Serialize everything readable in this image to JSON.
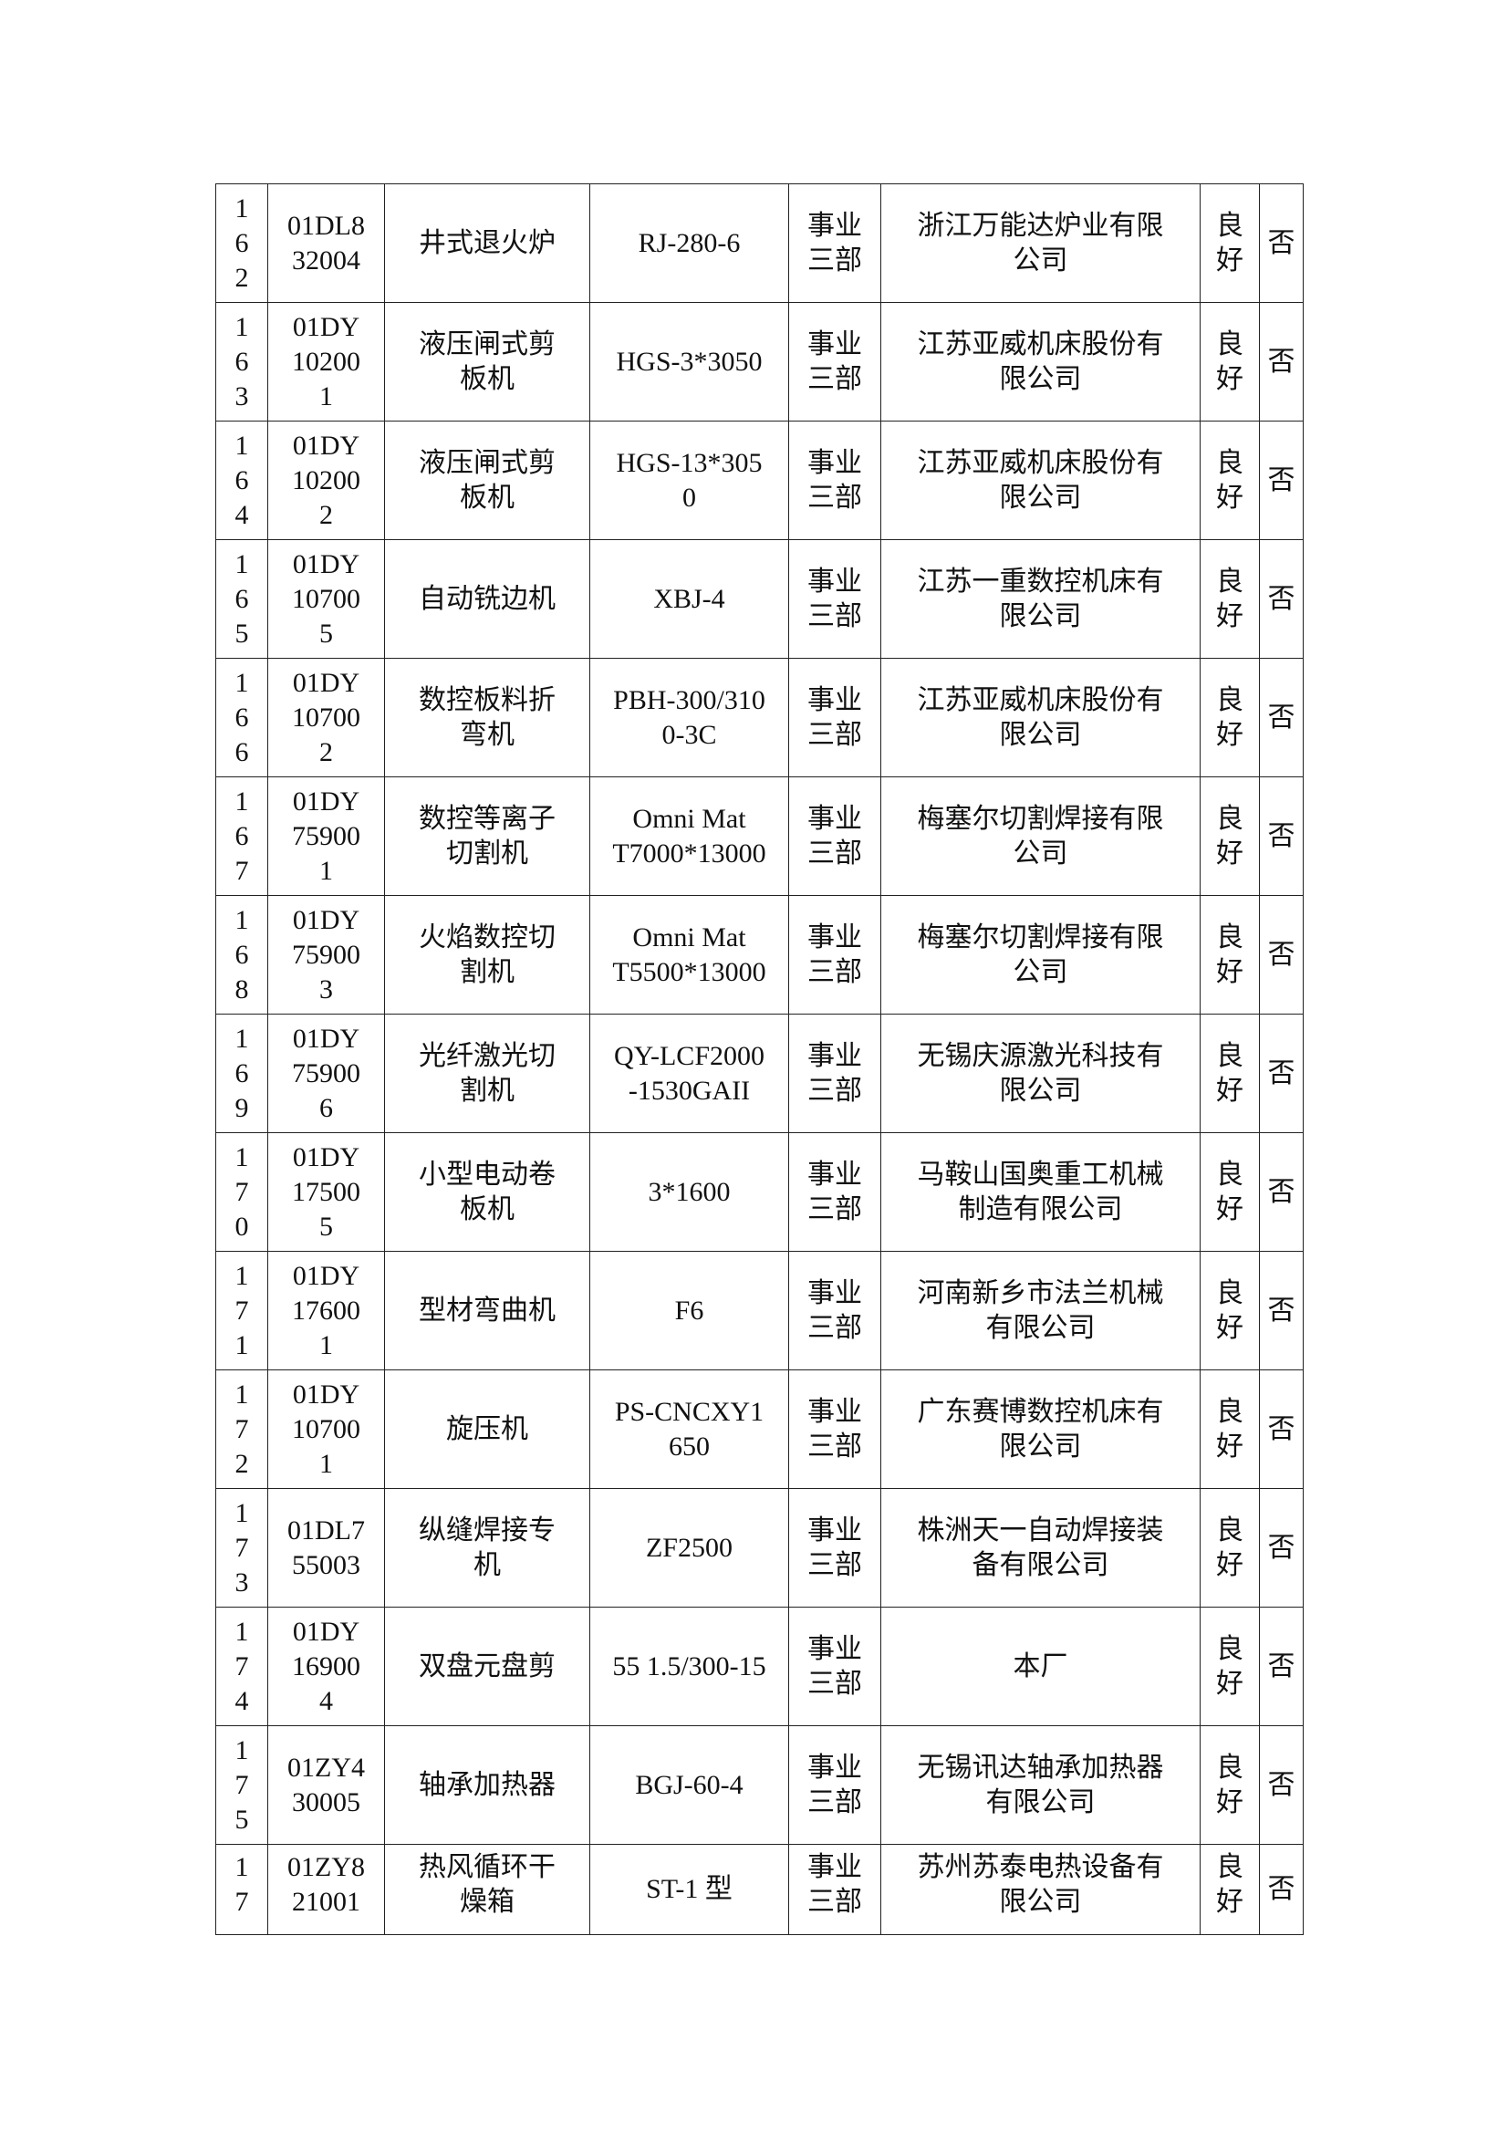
{
  "table": {
    "rows": [
      {
        "no": "1\n6\n2",
        "code": "01DL8\n32004",
        "name": "井式退火炉",
        "model": "RJ-280-6",
        "dept": "事业\n三部",
        "maker": "浙江万能达炉业有限\n公司",
        "status": "良\n好",
        "flag": "否"
      },
      {
        "no": "1\n6\n3",
        "code": "01DY\n10200\n1",
        "name": "液压闸式剪\n板机",
        "model": "HGS-3*3050",
        "dept": "事业\n三部",
        "maker": "江苏亚威机床股份有\n限公司",
        "status": "良\n好",
        "flag": "否"
      },
      {
        "no": "1\n6\n4",
        "code": "01DY\n10200\n2",
        "name": "液压闸式剪\n板机",
        "model": "HGS-13*305\n0",
        "dept": "事业\n三部",
        "maker": "江苏亚威机床股份有\n限公司",
        "status": "良\n好",
        "flag": "否"
      },
      {
        "no": "1\n6\n5",
        "code": "01DY\n10700\n5",
        "name": "自动铣边机",
        "model": "XBJ-4",
        "dept": "事业\n三部",
        "maker": "江苏一重数控机床有\n限公司",
        "status": "良\n好",
        "flag": "否"
      },
      {
        "no": "1\n6\n6",
        "code": "01DY\n10700\n2",
        "name": "数控板料折\n弯机",
        "model": "PBH-300/310\n0-3C",
        "dept": "事业\n三部",
        "maker": "江苏亚威机床股份有\n限公司",
        "status": "良\n好",
        "flag": "否"
      },
      {
        "no": "1\n6\n7",
        "code": "01DY\n75900\n1",
        "name": "数控等离子\n切割机",
        "model": "Omni Mat\nT7000*13000",
        "dept": "事业\n三部",
        "maker": "梅塞尔切割焊接有限\n公司",
        "status": "良\n好",
        "flag": "否"
      },
      {
        "no": "1\n6\n8",
        "code": "01DY\n75900\n3",
        "name": "火焰数控切\n割机",
        "model": "Omni Mat\nT5500*13000",
        "dept": "事业\n三部",
        "maker": "梅塞尔切割焊接有限\n公司",
        "status": "良\n好",
        "flag": "否"
      },
      {
        "no": "1\n6\n9",
        "code": "01DY\n75900\n6",
        "name": "光纤激光切\n割机",
        "model": "QY-LCF2000\n-1530GAII",
        "dept": "事业\n三部",
        "maker": "无锡庆源激光科技有\n限公司",
        "status": "良\n好",
        "flag": "否"
      },
      {
        "no": "1\n7\n0",
        "code": "01DY\n17500\n5",
        "name": "小型电动卷\n板机",
        "model": "3*1600",
        "dept": "事业\n三部",
        "maker": "马鞍山国奥重工机械\n制造有限公司",
        "status": "良\n好",
        "flag": "否"
      },
      {
        "no": "1\n7\n1",
        "code": "01DY\n17600\n1",
        "name": "型材弯曲机",
        "model": "F6",
        "dept": "事业\n三部",
        "maker": "河南新乡市法兰机械\n有限公司",
        "status": "良\n好",
        "flag": "否"
      },
      {
        "no": "1\n7\n2",
        "code": "01DY\n10700\n1",
        "name": "旋压机",
        "model": "PS-CNCXY1\n650",
        "dept": "事业\n三部",
        "maker": "广东赛博数控机床有\n限公司",
        "status": "良\n好",
        "flag": "否"
      },
      {
        "no": "1\n7\n3",
        "code": "01DL7\n55003",
        "name": "纵缝焊接专\n机",
        "model": "ZF2500",
        "dept": "事业\n三部",
        "maker": "株洲天一自动焊接装\n备有限公司",
        "status": "良\n好",
        "flag": "否"
      },
      {
        "no": "1\n7\n4",
        "code": "01DY\n16900\n4",
        "name": "双盘元盘剪",
        "model": "55 1.5/300-15",
        "dept": "事业\n三部",
        "maker": "本厂",
        "status": "良\n好",
        "flag": "否"
      },
      {
        "no": "1\n7\n5",
        "code": "01ZY4\n30005",
        "name": "轴承加热器",
        "model": "BGJ-60-4",
        "dept": "事业\n三部",
        "maker": "无锡讯达轴承加热器\n有限公司",
        "status": "良\n好",
        "flag": "否"
      },
      {
        "no": "1\n7",
        "code": "01ZY8\n21001",
        "name": "热风循环干\n燥箱",
        "model": "ST-1 型",
        "dept": "事业\n三部",
        "maker": "苏州苏泰电热设备有\n限公司",
        "status": "良\n好",
        "flag": "否"
      }
    ]
  }
}
